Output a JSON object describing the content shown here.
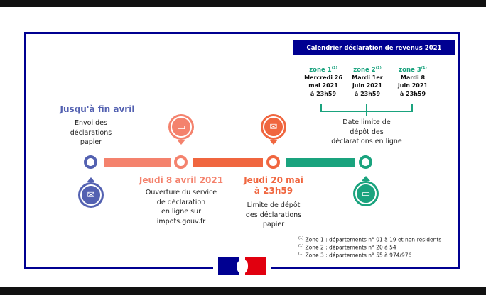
{
  "header": {
    "title": "Calendrier déclaration de revenus 2021"
  },
  "zones": [
    {
      "label": "zone 1",
      "note": "(1)",
      "date": [
        "Mercredi 26",
        "mai 2021",
        "à 23h59"
      ]
    },
    {
      "label": "zone 2",
      "note": "(1)",
      "date": [
        "Mardi 1er",
        "juin 2021",
        "à 23h59"
      ]
    },
    {
      "label": "zone 3",
      "note": "(1)",
      "date": [
        "Mardi 8",
        "juin 2021",
        "à 23h59"
      ]
    }
  ],
  "online_deadline": [
    "Date limite de",
    "dépôt des",
    "déclarations en ligne"
  ],
  "steps": [
    {
      "title": "Jusqu'à fin avril",
      "text": [
        "Envoi des",
        "déclarations",
        "papier"
      ],
      "color": "#5361b1",
      "icon": "envelope-document-icon"
    },
    {
      "title": "Jeudi 8 avril 2021",
      "text": [
        "Ouverture du service",
        "de déclaration",
        "en ligne sur",
        "impots.gouv.fr"
      ],
      "color": "#f4826d",
      "icon": "computer-phone-icon"
    },
    {
      "title": [
        "Jeudi 20 mai",
        "à 23h59"
      ],
      "text": [
        "Limite de dépôt",
        "des déclarations",
        "papier"
      ],
      "color": "#f0663f",
      "icon": "envelope-check-icon"
    },
    {
      "color": "#1aa37e",
      "icon": "online-declaration-icon"
    }
  ],
  "footnotes": [
    {
      "mark": "(1)",
      "text": "Zone 1 : départements n° 01 à 19 et non-résidents"
    },
    {
      "mark": "(1)",
      "text": "Zone 2 : départements n° 20 à 54"
    },
    {
      "mark": "(1)",
      "text": "Zone 3 : départements n° 55 à 974/976"
    }
  ],
  "colors": {
    "frame": "#000091",
    "flag_blue": "#000091",
    "flag_red": "#e1000f"
  }
}
